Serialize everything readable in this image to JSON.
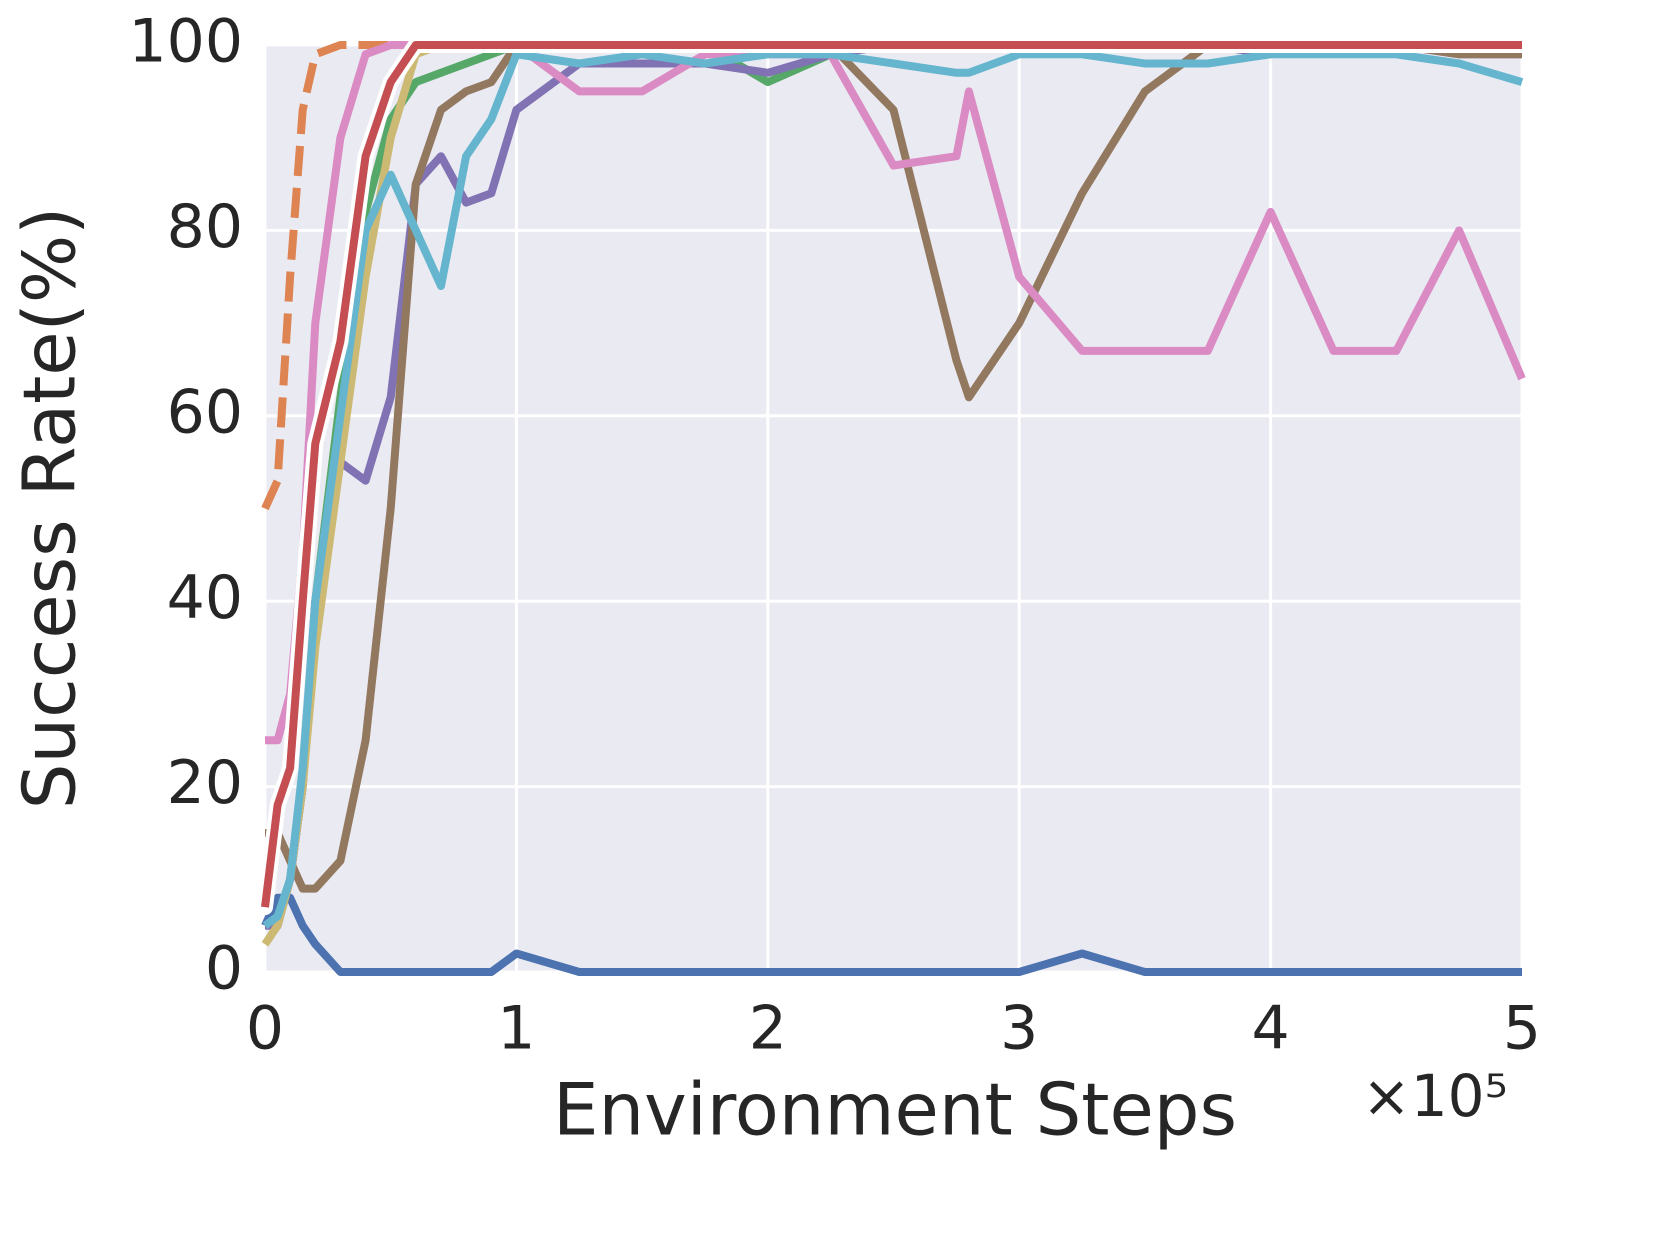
{
  "chart_data": {
    "type": "line",
    "xlabel": "Environment Steps",
    "ylabel": "Success Rate(%)",
    "x_offset_label": "×10⁵",
    "x": [
      0,
      0.05,
      0.1,
      0.15,
      0.2,
      0.3,
      0.4,
      0.5,
      0.6,
      0.7,
      0.8,
      0.9,
      1.0,
      1.25,
      1.5,
      1.75,
      2.0,
      2.25,
      2.5,
      2.75,
      2.8,
      3.0,
      3.25,
      3.5,
      3.75,
      4.0,
      4.25,
      4.5,
      4.75,
      5.0
    ],
    "series": [
      {
        "color": "#4c72b0",
        "values": [
          5,
          8,
          8,
          5,
          3,
          0,
          0,
          0,
          0,
          0,
          0,
          0,
          2,
          0,
          0,
          0,
          0,
          0,
          0,
          0,
          0,
          0,
          2,
          0,
          0,
          0,
          0,
          0,
          0,
          0
        ]
      },
      {
        "color": "#dd8452",
        "dashed": true,
        "values": [
          50,
          53,
          75,
          93,
          99,
          100,
          100,
          100,
          100,
          100,
          100,
          100,
          100,
          100,
          100,
          100,
          100,
          100,
          100,
          100,
          100,
          100,
          100,
          100,
          100,
          100,
          100,
          100,
          100,
          100
        ]
      },
      {
        "color": "#55a868",
        "values": [
          5,
          5,
          10,
          20,
          40,
          62,
          82,
          92,
          96,
          97,
          98,
          99,
          100,
          100,
          100,
          100,
          96,
          99,
          100,
          100,
          100,
          100,
          100,
          100,
          100,
          100,
          100,
          100,
          100,
          99
        ]
      },
      {
        "color": "#8172b3",
        "values": [
          5,
          5,
          10,
          20,
          40,
          55,
          53,
          62,
          85,
          88,
          83,
          84,
          93,
          98,
          98,
          98,
          97,
          99,
          100,
          100,
          100,
          100,
          100,
          100,
          100,
          99,
          100,
          100,
          99,
          99
        ]
      },
      {
        "color": "#937860",
        "values": [
          15,
          15,
          12,
          9,
          9,
          12,
          25,
          50,
          85,
          93,
          95,
          96,
          100,
          100,
          100,
          100,
          100,
          100,
          93,
          66,
          62,
          70,
          84,
          95,
          100,
          100,
          100,
          100,
          99,
          99
        ]
      },
      {
        "color": "#da8bc3",
        "values": [
          25,
          25,
          30,
          45,
          70,
          90,
          99,
          100,
          100,
          100,
          100,
          100,
          100,
          95,
          95,
          99,
          99,
          99,
          87,
          88,
          95,
          75,
          67,
          67,
          67,
          82,
          67,
          67,
          80,
          64
        ]
      },
      {
        "color": "#ccb974",
        "values": [
          3,
          5,
          10,
          20,
          35,
          55,
          75,
          90,
          99,
          100,
          100,
          100,
          100,
          100,
          100,
          100,
          100,
          100,
          100,
          100,
          100,
          100,
          100,
          100,
          100,
          100,
          100,
          100,
          100,
          100
        ]
      },
      {
        "color": "#64b5cd",
        "values": [
          5,
          6,
          10,
          22,
          40,
          60,
          80,
          86,
          80,
          74,
          88,
          92,
          99,
          98,
          99,
          98,
          99,
          99,
          98,
          97,
          97,
          99,
          99,
          98,
          98,
          99,
          99,
          99,
          98,
          96
        ]
      },
      {
        "color": "#c44e52",
        "outline": true,
        "values": [
          7,
          18,
          22,
          40,
          57,
          68,
          88,
          96,
          100,
          100,
          100,
          100,
          100,
          100,
          100,
          100,
          100,
          100,
          100,
          100,
          100,
          100,
          100,
          100,
          100,
          100,
          100,
          100,
          100,
          100
        ]
      }
    ],
    "xlim": [
      0,
      5
    ],
    "ylim": [
      0,
      100
    ],
    "xticks": [
      0,
      1,
      2,
      3,
      4,
      5
    ],
    "yticks": [
      0,
      20,
      40,
      60,
      80,
      100
    ],
    "grid": true
  }
}
